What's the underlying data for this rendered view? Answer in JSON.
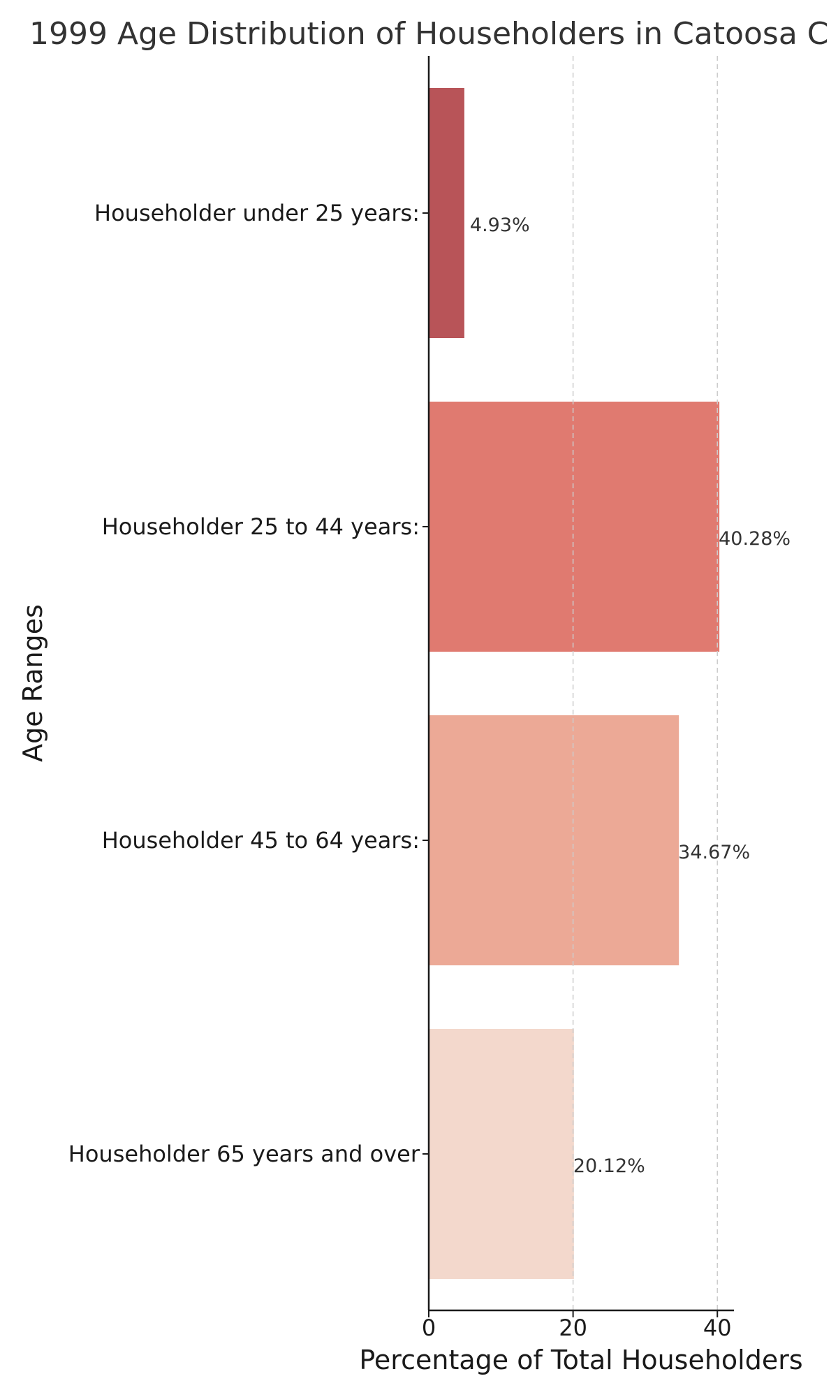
{
  "chart_data": {
    "type": "bar",
    "orientation": "horizontal",
    "title": "1999 Age Distribution of Householders in Catoosa C",
    "xlabel": "Percentage of Total Householders",
    "ylabel": "Age Ranges",
    "categories": [
      "Householder under 25 years:",
      "Householder 25 to 44 years:",
      "Householder 45 to 64 years:",
      "Householder 65 years and over"
    ],
    "values": [
      4.93,
      40.28,
      34.67,
      20.12
    ],
    "data_labels": [
      "4.93%",
      "40.28%",
      "34.67%",
      "20.12%"
    ],
    "colors": [
      "#b85458",
      "#e07a70",
      "#eca996",
      "#f3d8cc"
    ],
    "xlim": [
      0,
      42.3
    ],
    "xticks": [
      0,
      20,
      40
    ],
    "grid": "x-dashed",
    "legend": "none"
  }
}
